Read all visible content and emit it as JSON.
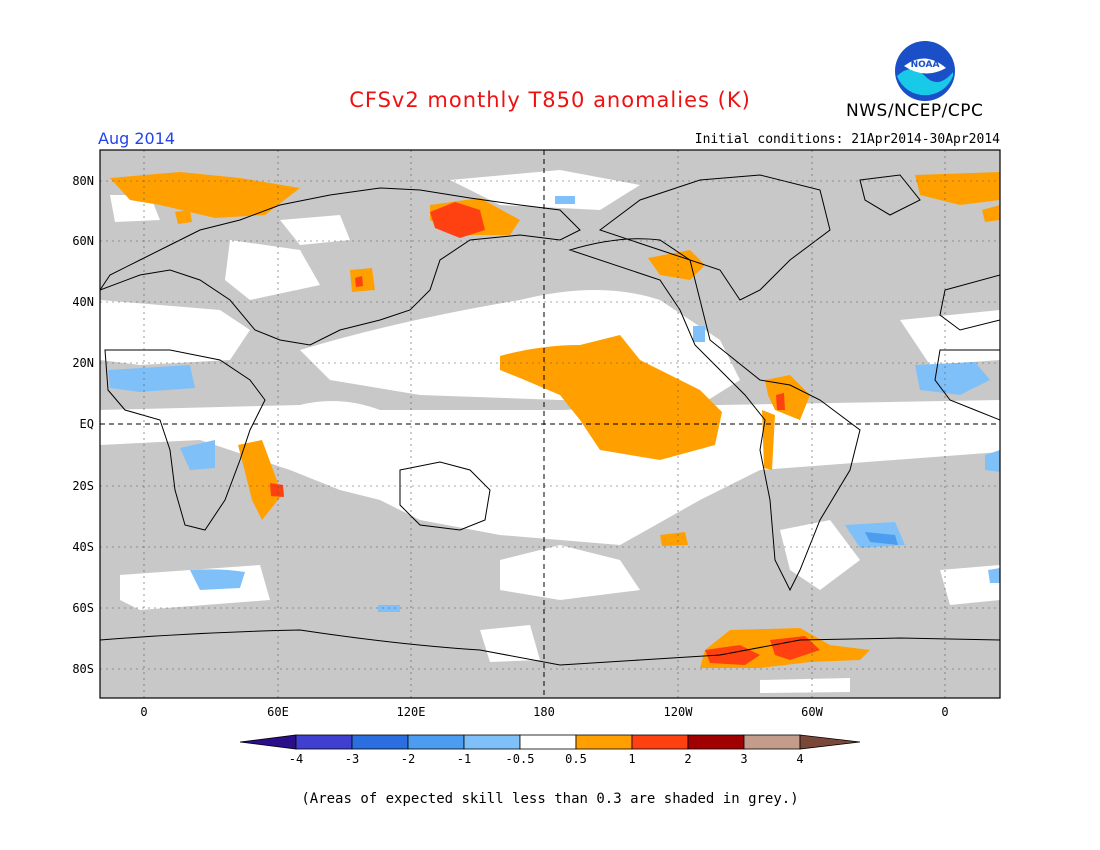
{
  "header": {
    "title": "CFSv2 monthly T850 anomalies (K)",
    "period": "Aug 2014",
    "agency": "NWS/NCEP/CPC",
    "initial_conditions": "Initial conditions: 21Apr2014-30Apr2014",
    "logo_text": "NOAA"
  },
  "map": {
    "lat_labels": [
      "80N",
      "60N",
      "40N",
      "20N",
      "EQ",
      "20S",
      "40S",
      "60S",
      "80S"
    ],
    "lon_labels": [
      "0",
      "60E",
      "120E",
      "180",
      "120W",
      "60W",
      "0"
    ],
    "background_color": "#c8c8c8"
  },
  "legend": {
    "colors": [
      "#2a0e8a",
      "#4040d0",
      "#2a6ee0",
      "#4c9cf0",
      "#80c0f8",
      "#ffffff",
      "#ffa000",
      "#ff4010",
      "#a00000",
      "#c49c8c",
      "#7a4838"
    ],
    "labels": [
      "-4",
      "-3",
      "-2",
      "-1",
      "-0.5",
      "0.5",
      "1",
      "2",
      "3",
      "4"
    ]
  },
  "footnote": "(Areas of expected skill less than 0.3 are shaded in grey.)"
}
